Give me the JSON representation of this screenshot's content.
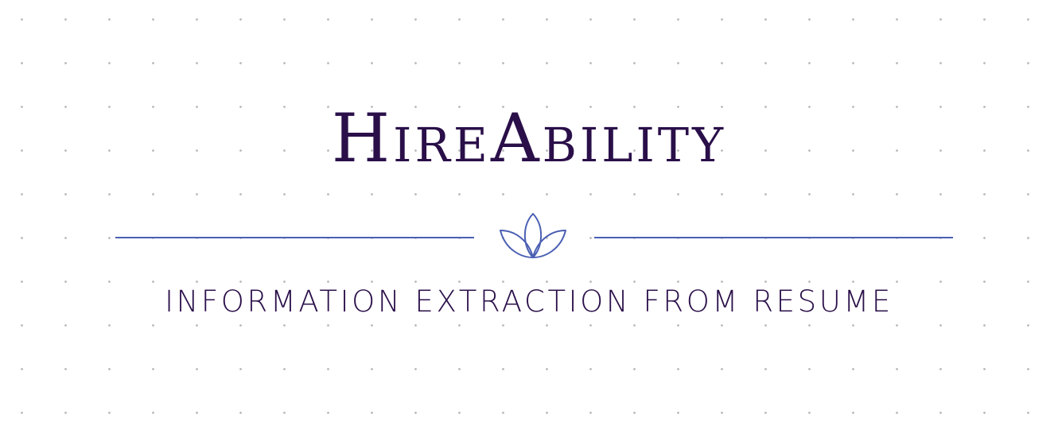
{
  "banner": {
    "title": "HireAbility",
    "tagline": "INFORMATION EXTRACTION FROM RESUME",
    "emblem_icon": "lotus-icon"
  },
  "colors": {
    "title": "#2a0f49",
    "accent": "#4a5fb3",
    "background": "#ffffff",
    "dots": "#b9b9bd"
  }
}
